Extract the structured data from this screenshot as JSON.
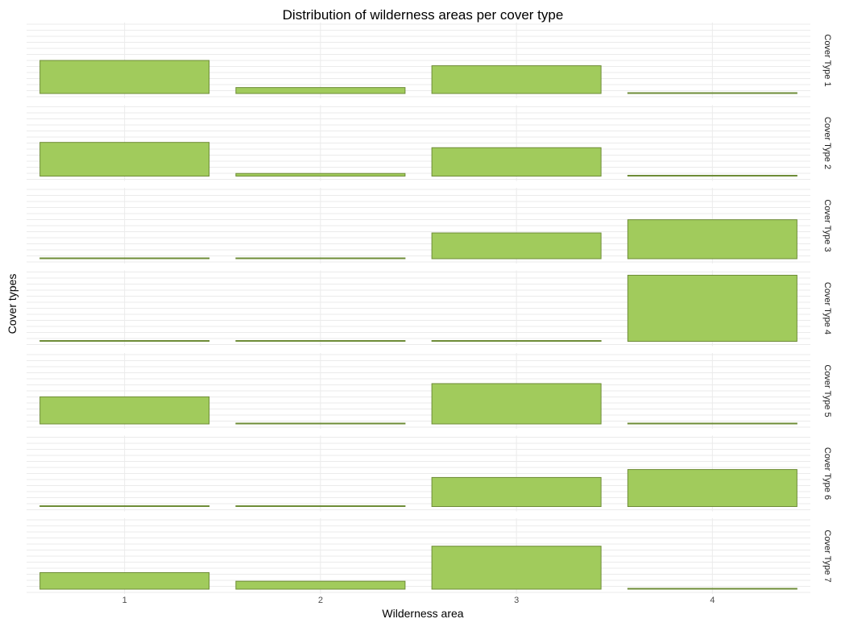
{
  "chart_data": {
    "type": "bar",
    "title": "Distribution of wilderness areas per cover type",
    "xlabel": "Wilderness area",
    "ylabel": "Cover types",
    "categories": [
      "1",
      "2",
      "3",
      "4"
    ],
    "ylim": [
      0,
      100
    ],
    "grid": true,
    "facet_strip_position": "right",
    "series": [
      {
        "name": "Cover Type 1",
        "values": [
          50,
          9,
          42,
          0.5
        ]
      },
      {
        "name": "Cover Type 2",
        "values": [
          51,
          4,
          43,
          1
        ]
      },
      {
        "name": "Cover Type 3",
        "values": [
          0.5,
          0.5,
          39,
          59
        ]
      },
      {
        "name": "Cover Type 4",
        "values": [
          0.5,
          0.5,
          0.5,
          100
        ]
      },
      {
        "name": "Cover Type 5",
        "values": [
          41,
          0.5,
          61,
          0.5
        ]
      },
      {
        "name": "Cover Type 6",
        "values": [
          0.5,
          0.5,
          44,
          56
        ]
      },
      {
        "name": "Cover Type 7",
        "values": [
          25,
          12,
          65,
          1
        ]
      }
    ],
    "colors": {
      "bar_fill": "#a1cb5c",
      "bar_stroke": "#6e8c37",
      "grid": "#ebebeb"
    }
  }
}
